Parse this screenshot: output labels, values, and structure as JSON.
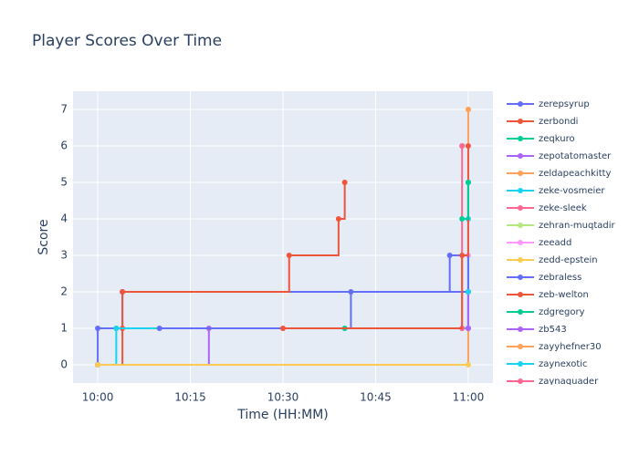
{
  "chart_data": {
    "type": "line",
    "line_shape": "hv",
    "title": "Player Scores Over Time",
    "x_label": "Time (HH:MM)",
    "y_label": "Score",
    "xlim": [
      "09:56",
      "11:04"
    ],
    "xticks": [
      "10:00",
      "10:15",
      "10:30",
      "10:45",
      "11:00"
    ],
    "ylim": [
      -0.5,
      7.5
    ],
    "yticks": [
      0,
      1,
      2,
      3,
      4,
      5,
      6,
      7
    ],
    "grid": true,
    "series": [
      {
        "name": "zerepsyrup",
        "color": "#636efa",
        "x": [
          "10:00",
          "10:00",
          "10:04",
          "11:00"
        ],
        "values": [
          0,
          1,
          2,
          2
        ]
      },
      {
        "name": "zerbondi",
        "color": "#ef553b",
        "x": [
          "10:00",
          "10:04",
          "10:04",
          "10:31",
          "10:39",
          "10:40"
        ],
        "values": [
          0,
          1,
          2,
          3,
          4,
          5
        ]
      },
      {
        "name": "zeqkuro",
        "color": "#00cc96",
        "x": [
          "10:03",
          "10:40",
          "11:00"
        ],
        "values": [
          1,
          1,
          5
        ]
      },
      {
        "name": "zepotatomaster",
        "color": "#ab63fa",
        "x": [
          "10:00",
          "10:18",
          "10:59"
        ],
        "values": [
          0,
          1,
          1
        ]
      },
      {
        "name": "zeldapeachkitty",
        "color": "#ffa15a",
        "x": [
          "10:00",
          "11:00"
        ],
        "values": [
          0,
          7
        ]
      },
      {
        "name": "zeke-vosmeier",
        "color": "#19d3f3",
        "x": [
          "10:00",
          "10:03",
          "11:00"
        ],
        "values": [
          0,
          1,
          4
        ]
      },
      {
        "name": "zeke-sleek",
        "color": "#ff6692",
        "x": [
          "10:59",
          "10:59"
        ],
        "values": [
          1,
          6
        ]
      },
      {
        "name": "zehran-muqtadir",
        "color": "#b6e880",
        "x": [
          "11:00"
        ],
        "values": [
          2
        ]
      },
      {
        "name": "zeeadd",
        "color": "#ff97ff",
        "x": [
          "11:00"
        ],
        "values": [
          3
        ]
      },
      {
        "name": "zedd-epstein",
        "color": "#fecb52",
        "x": [
          "10:00",
          "11:00"
        ],
        "values": [
          0,
          0
        ]
      },
      {
        "name": "zebraless",
        "color": "#636efa",
        "x": [
          "10:10",
          "10:41",
          "10:57",
          "11:00"
        ],
        "values": [
          1,
          2,
          3,
          1
        ]
      },
      {
        "name": "zeb-welton",
        "color": "#ef553b",
        "x": [
          "10:30",
          "10:59",
          "11:00"
        ],
        "values": [
          1,
          3,
          6
        ]
      },
      {
        "name": "zdgregory",
        "color": "#00cc96",
        "x": [
          "10:59",
          "11:00"
        ],
        "values": [
          4,
          5
        ]
      },
      {
        "name": "zb543",
        "color": "#ab63fa",
        "x": [
          "11:00",
          "11:00"
        ],
        "values": [
          1,
          2
        ]
      },
      {
        "name": "zayyhefner30",
        "color": "#ffa15a",
        "x": [
          "11:00"
        ],
        "values": [
          7
        ]
      },
      {
        "name": "zaynexotic",
        "color": "#19d3f3",
        "x": [
          "11:00"
        ],
        "values": [
          2
        ]
      },
      {
        "name": "zaynaquader",
        "color": "#ff6692",
        "x": [
          "10:59"
        ],
        "values": [
          6
        ]
      }
    ]
  }
}
